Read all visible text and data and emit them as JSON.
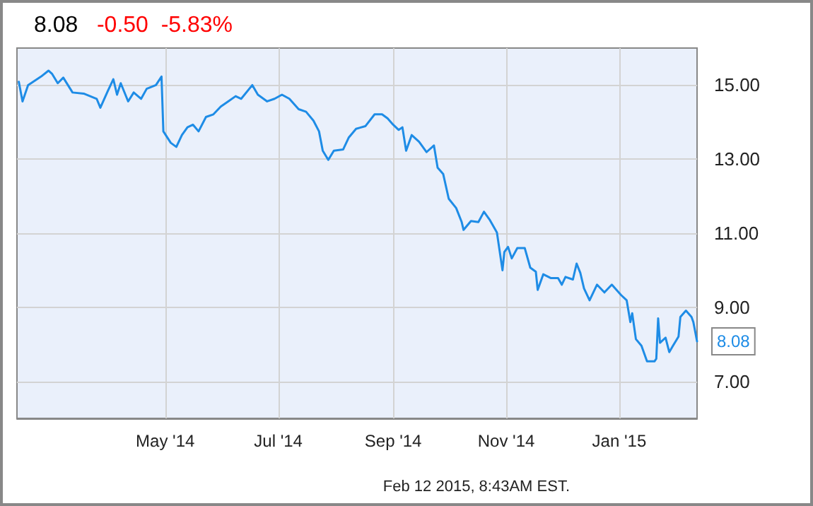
{
  "chart_data": {
    "type": "line",
    "title": "8.08",
    "subtitle": "-0.50  -5.83%",
    "annotations": [
      {
        "text": "8.08",
        "x": "2015-02-12",
        "y": 8.08
      },
      "Feb 12 2015, 8:43AM EST."
    ],
    "x": [
      "2014-02-11",
      "2014-02-13",
      "2014-02-16",
      "2014-02-19",
      "2014-02-23",
      "2014-02-27",
      "2014-03-01",
      "2014-03-04",
      "2014-03-07",
      "2014-03-12",
      "2014-03-18",
      "2014-03-25",
      "2014-03-27",
      "2014-03-31",
      "2014-04-03",
      "2014-04-05",
      "2014-04-07",
      "2014-04-11",
      "2014-04-14",
      "2014-04-18",
      "2014-04-21",
      "2014-04-26",
      "2014-04-29",
      "2014-04-30",
      "2014-05-04",
      "2014-05-07",
      "2014-05-10",
      "2014-05-13",
      "2014-05-16",
      "2014-05-19",
      "2014-05-23",
      "2014-05-27",
      "2014-05-31",
      "2014-06-04",
      "2014-06-08",
      "2014-06-11",
      "2014-06-17",
      "2014-06-20",
      "2014-06-25",
      "2014-06-29",
      "2014-07-03",
      "2014-07-07",
      "2014-07-12",
      "2014-07-16",
      "2014-07-20",
      "2014-07-23",
      "2014-07-25",
      "2014-07-28",
      "2014-07-31",
      "2014-08-05",
      "2014-08-08",
      "2014-08-12",
      "2014-08-17",
      "2014-08-22",
      "2014-08-26",
      "2014-08-29",
      "2014-09-01",
      "2014-09-04",
      "2014-09-06",
      "2014-09-08",
      "2014-09-11",
      "2014-09-15",
      "2014-09-19",
      "2014-09-23",
      "2014-09-25",
      "2014-09-28",
      "2014-10-01",
      "2014-10-05",
      "2014-10-08",
      "2014-10-09",
      "2014-10-13",
      "2014-10-17",
      "2014-10-20",
      "2014-10-23",
      "2014-10-27",
      "2014-10-30",
      "2014-10-31",
      "2014-11-02",
      "2014-11-04",
      "2014-11-07",
      "2014-11-11",
      "2014-11-14",
      "2014-11-17",
      "2014-11-18",
      "2014-11-21",
      "2014-11-25",
      "2014-11-29",
      "2014-12-01",
      "2014-12-03",
      "2014-12-07",
      "2014-12-09",
      "2014-12-11",
      "2014-12-13",
      "2014-12-16",
      "2014-12-20",
      "2014-12-24",
      "2014-12-28",
      "2015-01-02",
      "2015-01-05",
      "2015-01-07",
      "2015-01-08",
      "2015-01-10",
      "2015-01-13",
      "2015-01-16",
      "2015-01-20",
      "2015-01-21",
      "2015-01-22",
      "2015-01-23",
      "2015-01-26",
      "2015-01-28",
      "2015-01-30",
      "2015-02-02",
      "2015-02-03",
      "2015-02-06",
      "2015-02-09",
      "2015-02-10",
      "2015-02-12"
    ],
    "series": [
      {
        "color": "#1e8ce6",
        "values": [
          15.09,
          14.56,
          15.0,
          15.1,
          15.23,
          15.39,
          15.3,
          15.05,
          15.2,
          14.8,
          14.77,
          14.63,
          14.39,
          14.84,
          15.16,
          14.74,
          15.05,
          14.56,
          14.8,
          14.63,
          14.9,
          15.0,
          15.23,
          13.75,
          13.44,
          13.33,
          13.65,
          13.86,
          13.93,
          13.75,
          14.14,
          14.21,
          14.42,
          14.56,
          14.7,
          14.63,
          15.0,
          14.74,
          14.56,
          14.63,
          14.74,
          14.63,
          14.35,
          14.28,
          14.04,
          13.75,
          13.23,
          12.98,
          13.23,
          13.26,
          13.58,
          13.82,
          13.89,
          14.21,
          14.21,
          14.1,
          13.93,
          13.79,
          13.86,
          13.23,
          13.65,
          13.47,
          13.19,
          13.37,
          12.77,
          12.6,
          11.93,
          11.68,
          11.3,
          11.09,
          11.33,
          11.3,
          11.58,
          11.37,
          11.02,
          10.0,
          10.49,
          10.63,
          10.32,
          10.6,
          10.6,
          10.07,
          9.96,
          9.47,
          9.89,
          9.79,
          9.79,
          9.61,
          9.82,
          9.75,
          10.18,
          9.93,
          9.51,
          9.19,
          9.61,
          9.4,
          9.61,
          9.33,
          9.19,
          8.6,
          8.84,
          8.14,
          7.96,
          7.54,
          7.54,
          7.61,
          8.7,
          8.04,
          8.18,
          7.79,
          7.96,
          8.21,
          8.74,
          8.91,
          8.74,
          8.6,
          8.08
        ]
      }
    ],
    "xlim": [
      "2014-02-10",
      "2015-02-12"
    ],
    "xticks": [
      {
        "value": "2014-05-01",
        "label": "May '14"
      },
      {
        "value": "2014-07-01",
        "label": "Jul '14"
      },
      {
        "value": "2014-09-01",
        "label": "Sep '14"
      },
      {
        "value": "2014-11-01",
        "label": "Nov '14"
      },
      {
        "value": "2015-01-01",
        "label": "Jan '15"
      }
    ],
    "ylim": [
      6,
      16
    ],
    "yticks": [
      {
        "value": 7,
        "label": "7.00"
      },
      {
        "value": 9,
        "label": "9.00"
      },
      {
        "value": 11,
        "label": "11.00"
      },
      {
        "value": 13,
        "label": "13.00"
      },
      {
        "value": 15,
        "label": "15.00"
      }
    ],
    "grid": true,
    "marker": "none",
    "line_style": "solid"
  }
}
